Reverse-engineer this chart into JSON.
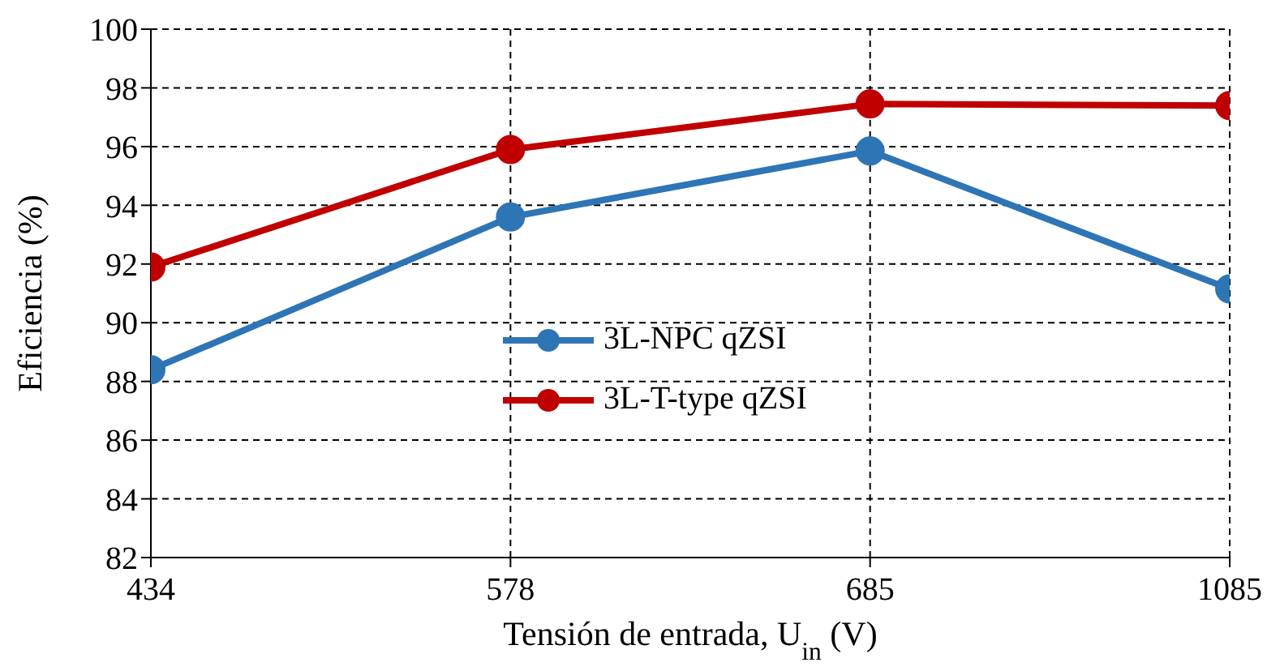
{
  "chart_data": {
    "type": "line",
    "xlabel": "Tensión de entrada, U$_{in}$ (V)",
    "ylabel": "Eficiencia (%)",
    "categories": [
      "434",
      "578",
      "685",
      "1085"
    ],
    "series": [
      {
        "name": "3L-NPC qZSI",
        "color": "#2e75b6",
        "values": [
          88.4,
          93.6,
          95.85,
          91.15
        ]
      },
      {
        "name": "3L-T-type qZSI",
        "color": "#c00000",
        "values": [
          91.9,
          95.9,
          97.45,
          97.4
        ]
      }
    ],
    "ylim": [
      82,
      100
    ],
    "yticks": [
      82,
      84,
      86,
      88,
      90,
      92,
      94,
      96,
      98,
      100
    ],
    "grid": true,
    "legend": "center",
    "marker": "circle",
    "line_style": "solid"
  }
}
